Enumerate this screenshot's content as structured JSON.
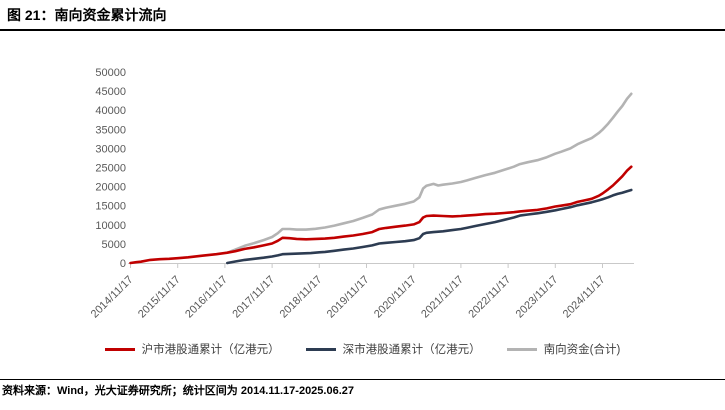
{
  "figure": {
    "title": "图 21：南向资金累计流向",
    "source_note": "资料来源：Wind，光大证券研究所；统计区间为 2014.11.17-2025.06.27"
  },
  "colors": {
    "shanghai_red": "#c00000",
    "shenzhen_navy": "#2d3c52",
    "total_gray": "#b3b3b3",
    "axis_gray": "#c9c9c9",
    "tick_text_gray": "#595959",
    "legend_text": "#404040"
  },
  "chart_data": {
    "type": "line",
    "title": "南向资金累计流向",
    "xlabel": "",
    "ylabel": "",
    "ylim": [
      0,
      50000
    ],
    "y_ticks": [
      0,
      5000,
      10000,
      15000,
      20000,
      25000,
      30000,
      35000,
      40000,
      45000,
      50000
    ],
    "x_tick_labels": [
      "2014/11/17",
      "2015/11/17",
      "2016/11/17",
      "2017/11/17",
      "2018/11/17",
      "2019/11/17",
      "2020/11/17",
      "2021/11/17",
      "2022/11/17",
      "2023/11/17",
      "2024/11/17"
    ],
    "x_tick_years": [
      2014.88,
      2015.88,
      2016.88,
      2017.88,
      2018.88,
      2019.88,
      2020.88,
      2021.88,
      2022.88,
      2023.88,
      2024.88
    ],
    "x_range": [
      2014.88,
      2025.49
    ],
    "grid": false,
    "legend_position": "bottom",
    "axis_color": "#c9c9c9",
    "series": [
      {
        "id": "shanghai",
        "name": "沪市港股通累计（亿港元）",
        "color": "#c00000",
        "z": 3,
        "points": [
          [
            2014.88,
            0
          ],
          [
            2015.0,
            200
          ],
          [
            2015.1,
            350
          ],
          [
            2015.3,
            800
          ],
          [
            2015.5,
            1000
          ],
          [
            2015.7,
            1100
          ],
          [
            2015.88,
            1250
          ],
          [
            2016.1,
            1500
          ],
          [
            2016.4,
            1900
          ],
          [
            2016.7,
            2300
          ],
          [
            2016.93,
            2700
          ],
          [
            2017.1,
            3100
          ],
          [
            2017.3,
            3700
          ],
          [
            2017.5,
            4100
          ],
          [
            2017.7,
            4600
          ],
          [
            2017.88,
            5100
          ],
          [
            2018.0,
            5800
          ],
          [
            2018.1,
            6600
          ],
          [
            2018.25,
            6500
          ],
          [
            2018.4,
            6300
          ],
          [
            2018.6,
            6200
          ],
          [
            2018.8,
            6300
          ],
          [
            2019.0,
            6400
          ],
          [
            2019.2,
            6600
          ],
          [
            2019.4,
            6900
          ],
          [
            2019.6,
            7200
          ],
          [
            2019.8,
            7600
          ],
          [
            2020.0,
            8100
          ],
          [
            2020.15,
            8900
          ],
          [
            2020.3,
            9200
          ],
          [
            2020.5,
            9500
          ],
          [
            2020.7,
            9800
          ],
          [
            2020.88,
            10100
          ],
          [
            2021.0,
            10700
          ],
          [
            2021.08,
            11900
          ],
          [
            2021.15,
            12300
          ],
          [
            2021.3,
            12400
          ],
          [
            2021.5,
            12300
          ],
          [
            2021.7,
            12200
          ],
          [
            2021.88,
            12300
          ],
          [
            2022.0,
            12400
          ],
          [
            2022.2,
            12600
          ],
          [
            2022.4,
            12800
          ],
          [
            2022.6,
            12900
          ],
          [
            2022.8,
            13100
          ],
          [
            2023.0,
            13300
          ],
          [
            2023.13,
            13500
          ],
          [
            2023.3,
            13700
          ],
          [
            2023.5,
            13900
          ],
          [
            2023.7,
            14300
          ],
          [
            2023.88,
            14800
          ],
          [
            2024.0,
            15000
          ],
          [
            2024.2,
            15400
          ],
          [
            2024.35,
            16000
          ],
          [
            2024.5,
            16400
          ],
          [
            2024.65,
            16800
          ],
          [
            2024.8,
            17600
          ],
          [
            2024.88,
            18200
          ],
          [
            2025.0,
            19300
          ],
          [
            2025.1,
            20300
          ],
          [
            2025.2,
            21500
          ],
          [
            2025.3,
            22700
          ],
          [
            2025.4,
            24200
          ],
          [
            2025.49,
            25200
          ]
        ]
      },
      {
        "id": "shenzhen",
        "name": "深市港股通累计（亿港元）",
        "color": "#2d3c52",
        "z": 2,
        "points": [
          [
            2016.93,
            0
          ],
          [
            2017.1,
            400
          ],
          [
            2017.3,
            800
          ],
          [
            2017.5,
            1100
          ],
          [
            2017.7,
            1400
          ],
          [
            2017.88,
            1700
          ],
          [
            2018.0,
            2000
          ],
          [
            2018.1,
            2300
          ],
          [
            2018.3,
            2400
          ],
          [
            2018.5,
            2500
          ],
          [
            2018.7,
            2600
          ],
          [
            2018.88,
            2800
          ],
          [
            2019.0,
            2900
          ],
          [
            2019.2,
            3200
          ],
          [
            2019.4,
            3500
          ],
          [
            2019.6,
            3800
          ],
          [
            2019.8,
            4200
          ],
          [
            2020.0,
            4600
          ],
          [
            2020.15,
            5100
          ],
          [
            2020.3,
            5300
          ],
          [
            2020.5,
            5500
          ],
          [
            2020.7,
            5700
          ],
          [
            2020.88,
            6000
          ],
          [
            2021.0,
            6500
          ],
          [
            2021.08,
            7600
          ],
          [
            2021.15,
            7900
          ],
          [
            2021.3,
            8100
          ],
          [
            2021.5,
            8300
          ],
          [
            2021.7,
            8600
          ],
          [
            2021.88,
            8900
          ],
          [
            2022.0,
            9200
          ],
          [
            2022.2,
            9700
          ],
          [
            2022.4,
            10200
          ],
          [
            2022.6,
            10700
          ],
          [
            2022.8,
            11300
          ],
          [
            2023.0,
            11900
          ],
          [
            2023.13,
            12400
          ],
          [
            2023.3,
            12700
          ],
          [
            2023.5,
            13000
          ],
          [
            2023.7,
            13400
          ],
          [
            2023.88,
            13800
          ],
          [
            2024.0,
            14100
          ],
          [
            2024.2,
            14600
          ],
          [
            2024.35,
            15100
          ],
          [
            2024.5,
            15500
          ],
          [
            2024.65,
            15900
          ],
          [
            2024.8,
            16400
          ],
          [
            2024.88,
            16700
          ],
          [
            2025.0,
            17200
          ],
          [
            2025.1,
            17700
          ],
          [
            2025.2,
            18100
          ],
          [
            2025.3,
            18400
          ],
          [
            2025.4,
            18800
          ],
          [
            2025.49,
            19100
          ]
        ]
      },
      {
        "id": "southbound-total",
        "name": "南向资金(合计)",
        "color": "#b3b3b3",
        "z": 1,
        "points": [
          [
            2016.93,
            2700
          ],
          [
            2017.1,
            3500
          ],
          [
            2017.3,
            4500
          ],
          [
            2017.5,
            5200
          ],
          [
            2017.7,
            6000
          ],
          [
            2017.88,
            6800
          ],
          [
            2018.0,
            7800
          ],
          [
            2018.1,
            8900
          ],
          [
            2018.25,
            8900
          ],
          [
            2018.4,
            8750
          ],
          [
            2018.6,
            8750
          ],
          [
            2018.8,
            8950
          ],
          [
            2019.0,
            9300
          ],
          [
            2019.2,
            9800
          ],
          [
            2019.4,
            10400
          ],
          [
            2019.6,
            11000
          ],
          [
            2019.8,
            11800
          ],
          [
            2020.0,
            12700
          ],
          [
            2020.15,
            14000
          ],
          [
            2020.3,
            14500
          ],
          [
            2020.5,
            15000
          ],
          [
            2020.7,
            15500
          ],
          [
            2020.88,
            16100
          ],
          [
            2021.0,
            17200
          ],
          [
            2021.08,
            19500
          ],
          [
            2021.15,
            20200
          ],
          [
            2021.3,
            20700
          ],
          [
            2021.4,
            20300
          ],
          [
            2021.5,
            20500
          ],
          [
            2021.7,
            20800
          ],
          [
            2021.88,
            21200
          ],
          [
            2022.0,
            21600
          ],
          [
            2022.2,
            22300
          ],
          [
            2022.4,
            23000
          ],
          [
            2022.6,
            23600
          ],
          [
            2022.8,
            24400
          ],
          [
            2023.0,
            25200
          ],
          [
            2023.13,
            25900
          ],
          [
            2023.3,
            26400
          ],
          [
            2023.5,
            26900
          ],
          [
            2023.7,
            27700
          ],
          [
            2023.88,
            28600
          ],
          [
            2024.0,
            29100
          ],
          [
            2024.2,
            30000
          ],
          [
            2024.35,
            31100
          ],
          [
            2024.5,
            31900
          ],
          [
            2024.65,
            32700
          ],
          [
            2024.8,
            34000
          ],
          [
            2024.88,
            34900
          ],
          [
            2025.0,
            36500
          ],
          [
            2025.1,
            38000
          ],
          [
            2025.2,
            39600
          ],
          [
            2025.3,
            41100
          ],
          [
            2025.4,
            43000
          ],
          [
            2025.49,
            44300
          ]
        ]
      }
    ]
  }
}
